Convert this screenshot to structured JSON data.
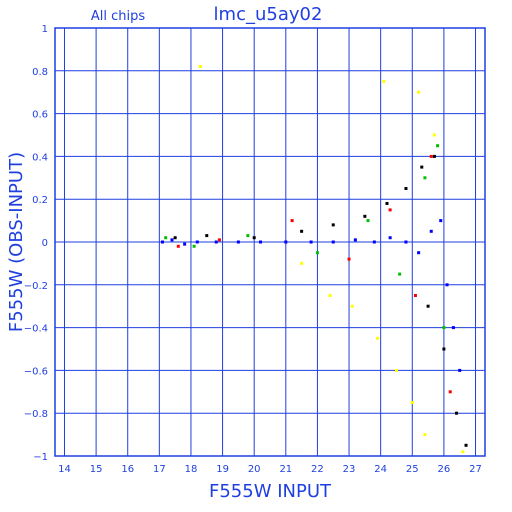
{
  "chart_data": {
    "type": "scatter",
    "title": "lmc_u5ay02",
    "subtitle": "All chips",
    "xlabel": "F555W INPUT",
    "ylabel": "F555W (OBS-INPUT)",
    "xlim": [
      13.7,
      27.3
    ],
    "ylim": [
      -1,
      1
    ],
    "xticks": [
      14,
      15,
      16,
      17,
      18,
      19,
      20,
      21,
      22,
      23,
      24,
      25,
      26,
      27
    ],
    "yticks": [
      -1,
      -0.8,
      -0.6,
      -0.4,
      -0.2,
      0,
      0.2,
      0.4,
      0.6,
      0.8,
      1
    ],
    "ytick_labels": [
      "−1",
      "−0.8",
      "−0.6",
      "−0.4",
      "−0.2",
      "0",
      "0.2",
      "0.4",
      "0.6",
      "0.8",
      "1"
    ],
    "grid": true,
    "series": [
      {
        "color": "#0000ff",
        "values": [
          [
            17.1,
            0.0
          ],
          [
            17.4,
            0.01
          ],
          [
            17.8,
            -0.01
          ],
          [
            18.2,
            0.0
          ],
          [
            18.8,
            0.0
          ],
          [
            19.5,
            0.0
          ],
          [
            20.2,
            0.0
          ],
          [
            21.0,
            0.0
          ],
          [
            21.8,
            0.0
          ],
          [
            22.5,
            0.0
          ],
          [
            23.2,
            0.01
          ],
          [
            23.8,
            0.0
          ],
          [
            24.3,
            0.02
          ],
          [
            24.8,
            0.0
          ],
          [
            25.2,
            -0.05
          ],
          [
            25.6,
            0.05
          ],
          [
            25.9,
            0.1
          ],
          [
            26.1,
            -0.2
          ],
          [
            26.3,
            -0.4
          ],
          [
            26.5,
            -0.6
          ]
        ]
      },
      {
        "color": "#000000",
        "values": [
          [
            17.5,
            0.02
          ],
          [
            18.5,
            0.03
          ],
          [
            20.0,
            0.02
          ],
          [
            21.5,
            0.05
          ],
          [
            22.5,
            0.08
          ],
          [
            23.5,
            0.12
          ],
          [
            24.2,
            0.18
          ],
          [
            24.8,
            0.25
          ],
          [
            25.3,
            0.35
          ],
          [
            25.7,
            0.4
          ],
          [
            25.5,
            -0.3
          ],
          [
            26.0,
            -0.5
          ],
          [
            26.4,
            -0.8
          ],
          [
            26.7,
            -0.95
          ]
        ]
      },
      {
        "color": "#00c000",
        "values": [
          [
            17.2,
            0.02
          ],
          [
            18.1,
            -0.02
          ],
          [
            19.8,
            0.03
          ],
          [
            22.0,
            -0.05
          ],
          [
            23.6,
            0.1
          ],
          [
            24.6,
            -0.15
          ],
          [
            25.4,
            0.3
          ],
          [
            25.8,
            0.45
          ],
          [
            26.0,
            -0.4
          ]
        ]
      },
      {
        "color": "#ff0000",
        "values": [
          [
            17.6,
            -0.02
          ],
          [
            18.9,
            0.01
          ],
          [
            21.2,
            0.1
          ],
          [
            23.0,
            -0.08
          ],
          [
            24.3,
            0.15
          ],
          [
            25.1,
            -0.25
          ],
          [
            25.6,
            0.4
          ],
          [
            26.2,
            -0.7
          ]
        ]
      },
      {
        "color": "#ffff00",
        "values": [
          [
            18.3,
            0.82
          ],
          [
            21.5,
            -0.1
          ],
          [
            22.4,
            -0.25
          ],
          [
            23.1,
            -0.3
          ],
          [
            23.9,
            -0.45
          ],
          [
            24.5,
            -0.6
          ],
          [
            25.0,
            -0.75
          ],
          [
            25.4,
            -0.9
          ],
          [
            24.1,
            0.75
          ],
          [
            25.2,
            0.7
          ],
          [
            25.7,
            0.5
          ],
          [
            26.6,
            -0.98
          ]
        ]
      }
    ]
  }
}
